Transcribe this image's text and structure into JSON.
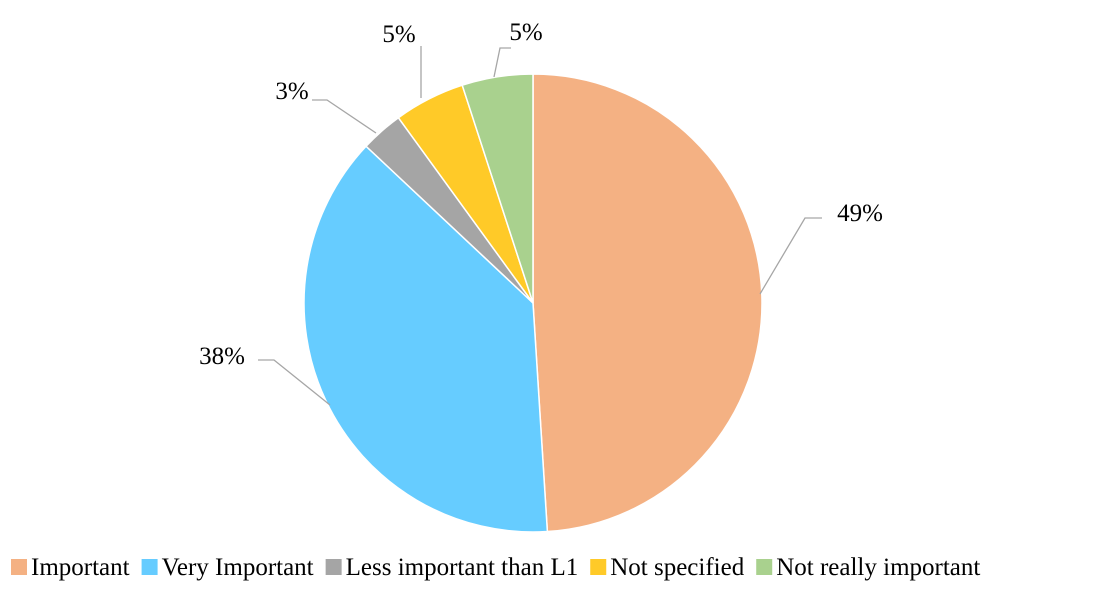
{
  "chart_data": {
    "type": "pie",
    "title": "",
    "categories": [
      "Important",
      "Very Important",
      "Less important than L1",
      "Not specified",
      "Not really important"
    ],
    "values": [
      49,
      38,
      3,
      5,
      5
    ],
    "data_labels": [
      "49%",
      "38%",
      "3%",
      "5%",
      "5%"
    ],
    "colors": [
      "#F4B183",
      "#66CCFF",
      "#A5A5A5",
      "#FFCA28",
      "#A9D18E"
    ],
    "start_angle_deg": 0,
    "direction": "clockwise",
    "legend_position": "bottom",
    "slice_borders": "#ffffff"
  }
}
